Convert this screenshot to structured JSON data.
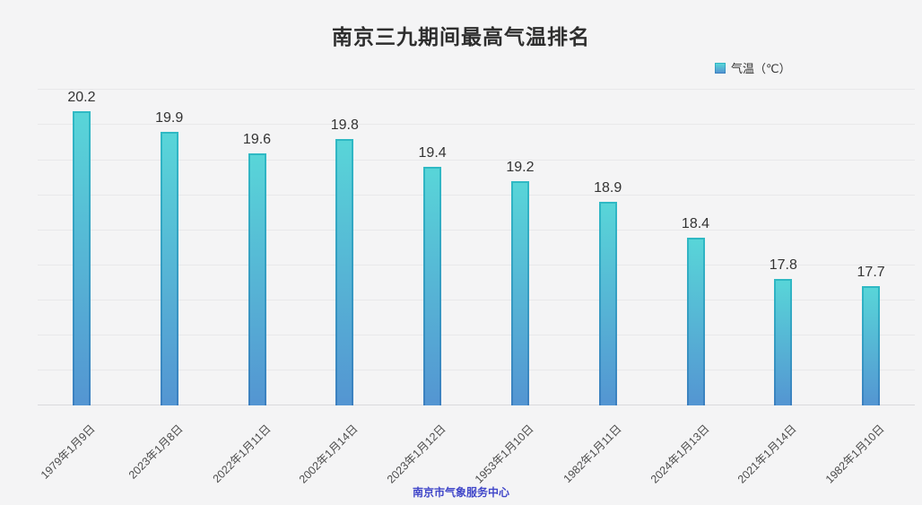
{
  "page": {
    "title": "南京三九期间最高气温排名",
    "source": "南京市气象服务中心"
  },
  "legend": {
    "label": "气温（℃）"
  },
  "colors": {
    "background": "#f4f4f5",
    "grid": "#e8e8ea",
    "bar_top": "#58d5d8",
    "bar_bottom": "#5495d2",
    "bar_border_top": "#2fb9c4",
    "bar_border_bottom": "#3c7fc0",
    "footer_text": "#4147c9"
  },
  "chart_data": {
    "type": "bar",
    "title": "南京三九期间最高气温排名",
    "categories": [
      "1979年1月9日",
      "2023年1月8日",
      "2022年1月11日",
      "2002年1月14日",
      "2023年1月12日",
      "1953年1月10日",
      "1982年1月11日",
      "2024年1月13日",
      "2021年1月14日",
      "1982年1月10日"
    ],
    "series": [
      {
        "name": "气温（℃）",
        "values": [
          20.2,
          19.9,
          19.6,
          19.8,
          19.4,
          19.2,
          18.9,
          18.4,
          17.8,
          17.7
        ]
      }
    ],
    "xlabel": "",
    "ylabel": "气温（℃）",
    "ylim": [
      16,
      20.53
    ],
    "grid": "horizontal",
    "grid_step": 0.5,
    "legend_position": "top-right",
    "value_labels": true,
    "value_label_format": "0.0",
    "x_label_rotation": -45,
    "source": "南京市气象服务中心"
  }
}
